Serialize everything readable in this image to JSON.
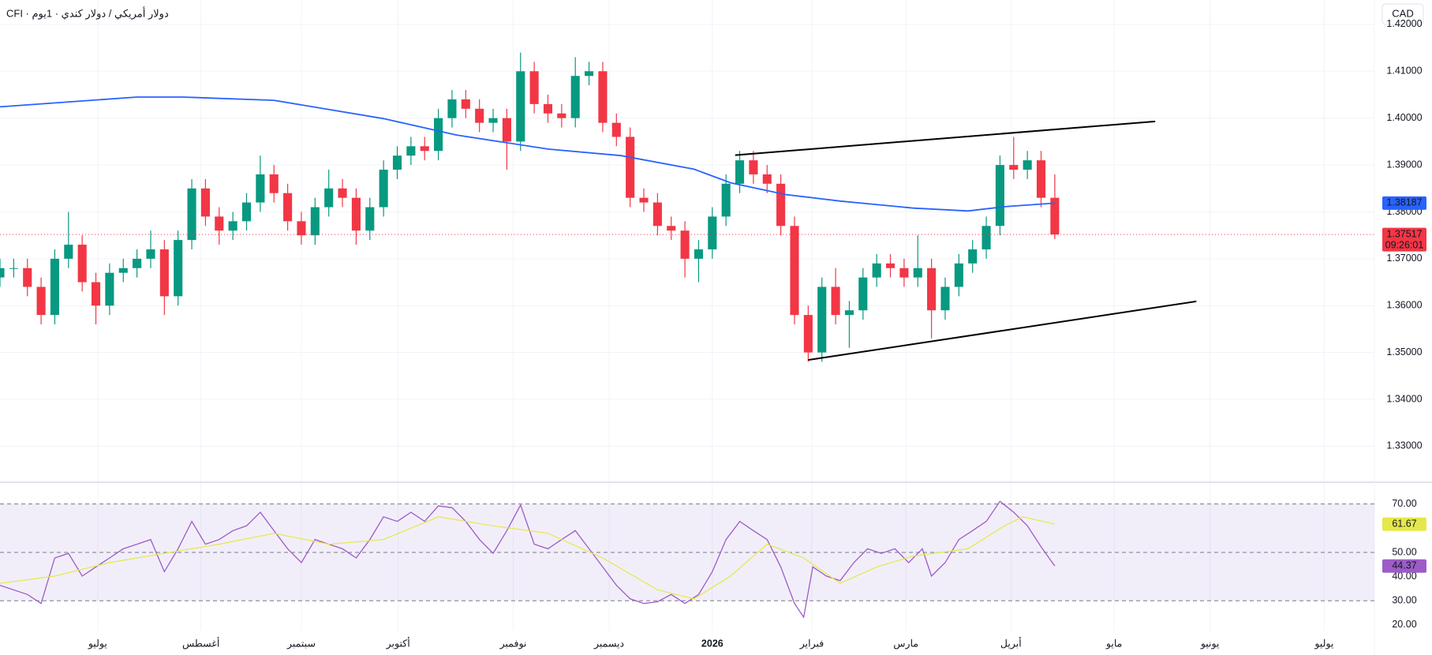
{
  "chart_data": [
    {
      "type": "candlestick",
      "title": "CFI · دولار أمريكي / دولار كندي · 1يوم",
      "currency": "CAD",
      "countdown": "09:26:01",
      "up_color": "#089981",
      "down_color": "#f23645",
      "xlim": [
        0,
        301
      ],
      "ylim": [
        1.3225,
        1.4252
      ],
      "grid": true,
      "yticks": [
        {
          "value": 1.33,
          "label": "1.33000"
        },
        {
          "value": 1.34,
          "label": "1.34000"
        },
        {
          "value": 1.35,
          "label": "1.35000"
        },
        {
          "value": 1.36,
          "label": "1.36000"
        },
        {
          "value": 1.37,
          "label": "1.37000"
        },
        {
          "value": 1.38,
          "label": "1.38000"
        },
        {
          "value": 1.39,
          "label": "1.39000"
        },
        {
          "value": 1.4,
          "label": "1.40000"
        },
        {
          "value": 1.41,
          "label": "1.41000"
        },
        {
          "value": 1.42,
          "label": "1.42000"
        }
      ],
      "x": [
        0,
        3,
        6,
        9,
        12,
        15,
        18,
        21,
        24,
        27,
        30,
        33,
        36,
        39,
        42,
        45,
        48,
        51,
        54,
        57,
        60,
        63,
        66,
        69,
        72,
        75,
        78,
        81,
        84,
        87,
        90,
        93,
        96,
        99,
        102,
        105,
        108,
        111,
        114,
        117,
        120,
        123,
        126,
        129,
        132,
        135,
        138,
        141,
        144,
        147,
        150,
        153,
        156,
        159,
        162,
        165,
        168,
        171,
        174,
        177,
        180,
        183,
        186,
        189,
        192,
        195,
        198,
        201,
        204,
        207,
        210,
        213,
        216,
        219,
        222,
        225,
        228,
        231
      ],
      "open": [
        1.366,
        1.368,
        1.368,
        1.364,
        1.358,
        1.37,
        1.373,
        1.365,
        1.36,
        1.367,
        1.368,
        1.37,
        1.372,
        1.362,
        1.374,
        1.385,
        1.379,
        1.376,
        1.378,
        1.382,
        1.388,
        1.384,
        1.378,
        1.375,
        1.381,
        1.385,
        1.383,
        1.376,
        1.381,
        1.389,
        1.392,
        1.394,
        1.393,
        1.4,
        1.404,
        1.402,
        1.399,
        1.4,
        1.395,
        1.41,
        1.403,
        1.401,
        1.4,
        1.409,
        1.41,
        1.399,
        1.396,
        1.383,
        1.382,
        1.377,
        1.376,
        1.37,
        1.372,
        1.379,
        1.386,
        1.391,
        1.388,
        1.386,
        1.377,
        1.358,
        1.35,
        1.364,
        1.358,
        1.359,
        1.366,
        1.369,
        1.368,
        1.366,
        1.368,
        1.359,
        1.364,
        1.369,
        1.372,
        1.377,
        1.39,
        1.389,
        1.391,
        1.383
      ],
      "high": [
        1.37,
        1.37,
        1.37,
        1.366,
        1.372,
        1.38,
        1.375,
        1.367,
        1.369,
        1.37,
        1.372,
        1.376,
        1.374,
        1.376,
        1.387,
        1.387,
        1.381,
        1.38,
        1.384,
        1.392,
        1.39,
        1.386,
        1.38,
        1.383,
        1.389,
        1.387,
        1.385,
        1.383,
        1.391,
        1.394,
        1.396,
        1.396,
        1.402,
        1.406,
        1.406,
        1.404,
        1.402,
        1.402,
        1.414,
        1.412,
        1.405,
        1.403,
        1.413,
        1.412,
        1.412,
        1.401,
        1.398,
        1.385,
        1.384,
        1.379,
        1.378,
        1.374,
        1.381,
        1.388,
        1.393,
        1.393,
        1.39,
        1.388,
        1.379,
        1.36,
        1.366,
        1.368,
        1.361,
        1.368,
        1.371,
        1.371,
        1.37,
        1.375,
        1.37,
        1.366,
        1.371,
        1.374,
        1.379,
        1.392,
        1.396,
        1.393,
        1.393,
        1.388
      ],
      "low": [
        1.364,
        1.366,
        1.362,
        1.356,
        1.356,
        1.368,
        1.363,
        1.356,
        1.358,
        1.365,
        1.366,
        1.368,
        1.358,
        1.36,
        1.372,
        1.377,
        1.373,
        1.374,
        1.376,
        1.38,
        1.382,
        1.376,
        1.373,
        1.373,
        1.379,
        1.381,
        1.373,
        1.374,
        1.379,
        1.387,
        1.39,
        1.391,
        1.391,
        1.398,
        1.4,
        1.397,
        1.397,
        1.389,
        1.393,
        1.401,
        1.399,
        1.398,
        1.398,
        1.407,
        1.397,
        1.394,
        1.381,
        1.38,
        1.375,
        1.374,
        1.366,
        1.365,
        1.37,
        1.377,
        1.384,
        1.386,
        1.384,
        1.375,
        1.356,
        1.348,
        1.348,
        1.356,
        1.351,
        1.357,
        1.364,
        1.366,
        1.364,
        1.364,
        1.353,
        1.357,
        1.362,
        1.367,
        1.37,
        1.375,
        1.387,
        1.387,
        1.381,
        1.37417
      ],
      "close": [
        1.368,
        1.368,
        1.364,
        1.358,
        1.37,
        1.373,
        1.365,
        1.36,
        1.367,
        1.368,
        1.37,
        1.372,
        1.362,
        1.374,
        1.385,
        1.379,
        1.376,
        1.378,
        1.382,
        1.388,
        1.384,
        1.378,
        1.375,
        1.381,
        1.385,
        1.383,
        1.376,
        1.381,
        1.389,
        1.392,
        1.394,
        1.393,
        1.4,
        1.404,
        1.402,
        1.399,
        1.4,
        1.395,
        1.41,
        1.403,
        1.401,
        1.4,
        1.409,
        1.41,
        1.399,
        1.396,
        1.383,
        1.382,
        1.377,
        1.376,
        1.37,
        1.372,
        1.379,
        1.386,
        1.391,
        1.388,
        1.386,
        1.377,
        1.358,
        1.35,
        1.364,
        1.358,
        1.359,
        1.366,
        1.369,
        1.368,
        1.366,
        1.368,
        1.359,
        1.364,
        1.369,
        1.372,
        1.377,
        1.39,
        1.389,
        1.391,
        1.383,
        1.37517
      ],
      "overlays": [
        {
          "color": "#2962ff",
          "x": [
            0,
            30,
            40,
            60,
            84,
            100,
            120,
            136,
            152,
            160,
            172,
            184,
            200,
            212,
            220,
            231
          ],
          "values": [
            1.4024,
            1.4045,
            1.4045,
            1.4038,
            1.3999,
            1.3964,
            1.3934,
            1.392,
            1.3891,
            1.3862,
            1.3837,
            1.3823,
            1.3808,
            1.3802,
            1.3811,
            1.38187
          ]
        }
      ],
      "trendlines": [
        {
          "color": "#000000",
          "x": [
            161,
            253
          ],
          "values": [
            1.3921,
            1.3993
          ]
        },
        {
          "color": "#000000",
          "x": [
            177,
            262
          ],
          "values": [
            1.3484,
            1.3609
          ]
        }
      ]
    },
    {
      "type": "line",
      "xlim": [
        0,
        301
      ],
      "ylim": [
        17.7,
        78.7
      ],
      "band_color": "#7e57c2",
      "levels": [
        70,
        50,
        30
      ],
      "yticks": [
        {
          "value": 20,
          "label": "20.00"
        },
        {
          "value": 30,
          "label": "30.00"
        },
        {
          "value": 40,
          "label": "40.00"
        },
        {
          "value": 50,
          "label": "50.00"
        },
        {
          "value": 70,
          "label": "70.00"
        }
      ],
      "xticks": [
        {
          "value": 21.4,
          "label": "يوليو"
        },
        {
          "value": 44,
          "label": "أغسطس"
        },
        {
          "value": 66,
          "label": "سبتمبر"
        },
        {
          "value": 87.2,
          "label": "أكتوبر"
        },
        {
          "value": 112.4,
          "label": "نوفمبر"
        },
        {
          "value": 133.4,
          "label": "ديسمبر"
        },
        {
          "value": 156,
          "label": "2026"
        },
        {
          "value": 177.8,
          "label": "فبراير"
        },
        {
          "value": 198.4,
          "label": "مارس"
        },
        {
          "value": 221.4,
          "label": "أبريل"
        },
        {
          "value": 244,
          "label": "مايو"
        },
        {
          "value": 265,
          "label": "يونيو"
        },
        {
          "value": 290,
          "label": "يوليو"
        }
      ],
      "series": [
        {
          "color": "#9c5cc8",
          "x": [
            0,
            6,
            9,
            12,
            15,
            18,
            21,
            24,
            27,
            30,
            33,
            36,
            39,
            42,
            45,
            48,
            51,
            54,
            57,
            60,
            63,
            66,
            69,
            72,
            75,
            78,
            81,
            84,
            87,
            90,
            93,
            96,
            99,
            102,
            105,
            108,
            111,
            114,
            117,
            120,
            123,
            126,
            129,
            132,
            135,
            138,
            141,
            144,
            147,
            150,
            153,
            156,
            159,
            162,
            165,
            168,
            171,
            174,
            176,
            178,
            181,
            184,
            187,
            190,
            193,
            196,
            199,
            202,
            204,
            207,
            210,
            213,
            216,
            219,
            222,
            225,
            228,
            231
          ],
          "values": [
            36.4,
            32.6,
            28.9,
            47.7,
            49.6,
            40.2,
            44,
            47.7,
            51.5,
            53.4,
            55.3,
            42,
            51.5,
            62.8,
            53.4,
            55.3,
            59,
            61,
            66.6,
            59,
            51.5,
            45.8,
            55.3,
            53.4,
            51.5,
            47.7,
            55.3,
            64.7,
            62.8,
            66.6,
            62.8,
            69.2,
            68.5,
            62.8,
            55.3,
            49.6,
            59,
            69.6,
            53.4,
            51.5,
            55.3,
            59,
            51.5,
            44,
            36.4,
            30.8,
            28.9,
            29.6,
            32.6,
            28.9,
            32.6,
            42,
            55.3,
            62.8,
            59,
            55.3,
            44,
            28.9,
            23.2,
            44,
            40.2,
            38.3,
            45.8,
            51.5,
            49.6,
            51.5,
            45.8,
            51.5,
            40.2,
            45.8,
            55.3,
            59,
            62.8,
            71.1,
            66.6,
            61,
            52.3,
            44.37
          ]
        },
        {
          "color": "#e5e84a",
          "x": [
            0,
            12,
            24,
            36,
            48,
            60,
            72,
            84,
            96,
            108,
            120,
            132,
            144,
            152,
            160,
            168,
            176,
            184,
            192,
            200,
            212,
            220,
            224,
            231
          ],
          "values": [
            37.2,
            40.2,
            45.8,
            49.6,
            53.4,
            57.9,
            53.4,
            55.3,
            64.7,
            61,
            57.9,
            47.7,
            34.5,
            30.8,
            40.2,
            53.4,
            47.7,
            37.2,
            44,
            48.5,
            51.5,
            61,
            64.7,
            61.67
          ]
        }
      ]
    }
  ]
}
